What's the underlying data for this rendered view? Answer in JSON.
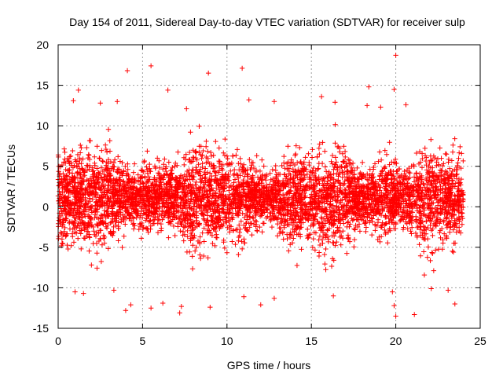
{
  "chart_data": {
    "type": "scatter",
    "title": "Day 154 of 2011, Sidereal Day-to-day VTEC variation (SDTVAR) for receiver sulp",
    "xlabel": "GPS time / hours",
    "ylabel": "SDTVAR / TECUs",
    "xlim": [
      0,
      25
    ],
    "ylim": [
      -15,
      20
    ],
    "xticks": [
      0,
      5,
      10,
      15,
      20,
      25
    ],
    "yticks": [
      -15,
      -10,
      -5,
      0,
      5,
      10,
      15,
      20
    ],
    "grid": true,
    "marker": "plus",
    "color": "#ff0000",
    "series": [
      {
        "name": "SDTVAR",
        "bulk_description": "dense points approx 0 to 24 h, mostly within -7 to +9 TECU",
        "outliers": [
          {
            "x": 0.9,
            "y": 13.1
          },
          {
            "x": 1.2,
            "y": 14.4
          },
          {
            "x": 2.5,
            "y": 12.8
          },
          {
            "x": 3.5,
            "y": 13.0
          },
          {
            "x": 4.1,
            "y": 16.8
          },
          {
            "x": 5.5,
            "y": 17.4
          },
          {
            "x": 6.5,
            "y": 14.4
          },
          {
            "x": 7.6,
            "y": 12.1
          },
          {
            "x": 8.9,
            "y": 16.5
          },
          {
            "x": 10.9,
            "y": 17.1
          },
          {
            "x": 11.3,
            "y": 13.2
          },
          {
            "x": 12.8,
            "y": 13.0
          },
          {
            "x": 15.6,
            "y": 13.6
          },
          {
            "x": 16.4,
            "y": 12.9
          },
          {
            "x": 18.4,
            "y": 14.8
          },
          {
            "x": 18.3,
            "y": 12.5
          },
          {
            "x": 19.1,
            "y": 12.3
          },
          {
            "x": 19.9,
            "y": 14.5
          },
          {
            "x": 20.0,
            "y": 18.7
          },
          {
            "x": 20.6,
            "y": 12.6
          },
          {
            "x": 1.0,
            "y": -10.5
          },
          {
            "x": 1.5,
            "y": -10.7
          },
          {
            "x": 3.3,
            "y": -10.3
          },
          {
            "x": 4.0,
            "y": -12.8
          },
          {
            "x": 4.3,
            "y": -12.1
          },
          {
            "x": 5.5,
            "y": -12.5
          },
          {
            "x": 6.2,
            "y": -11.9
          },
          {
            "x": 7.2,
            "y": -13.1
          },
          {
            "x": 7.3,
            "y": -12.3
          },
          {
            "x": 9.0,
            "y": -12.4
          },
          {
            "x": 11.0,
            "y": -11.1
          },
          {
            "x": 12.0,
            "y": -12.1
          },
          {
            "x": 12.8,
            "y": -11.3
          },
          {
            "x": 16.3,
            "y": -11.0
          },
          {
            "x": 19.8,
            "y": -10.5
          },
          {
            "x": 20.0,
            "y": -13.5
          },
          {
            "x": 19.9,
            "y": -12.2
          },
          {
            "x": 21.1,
            "y": -13.3
          },
          {
            "x": 22.1,
            "y": -10.1
          },
          {
            "x": 23.5,
            "y": -12.0
          },
          {
            "x": 23.1,
            "y": -10.3
          }
        ]
      }
    ]
  }
}
